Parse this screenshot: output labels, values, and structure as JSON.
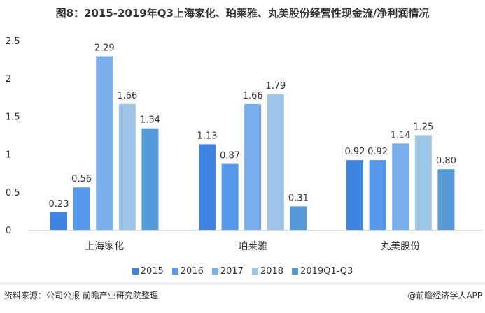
{
  "chart_data": {
    "type": "bar",
    "title": "图8：2015-2019年Q3上海家化、珀莱雅、丸美股份经营性现金流/净利润情况",
    "categories": [
      "上海家化",
      "珀莱雅",
      "丸美股份"
    ],
    "series": [
      {
        "name": "2015",
        "values": [
          0.23,
          1.13,
          0.92
        ],
        "color": "#3d85e0"
      },
      {
        "name": "2016",
        "values": [
          0.56,
          0.87,
          0.92
        ],
        "color": "#5599ea"
      },
      {
        "name": "2017",
        "values": [
          2.29,
          1.66,
          1.14
        ],
        "color": "#77aeeb"
      },
      {
        "name": "2018",
        "values": [
          1.66,
          1.79,
          1.25
        ],
        "color": "#9cc5e8"
      },
      {
        "name": "2019Q1-Q3",
        "values": [
          1.34,
          0.31,
          0.8
        ],
        "color": "#559ad6"
      }
    ],
    "labels": [
      [
        "0.23",
        "1.13",
        "0.92"
      ],
      [
        "0.56",
        "0.87",
        "0.92"
      ],
      [
        "2.29",
        "1.66",
        "1.14"
      ],
      [
        "1.66",
        "1.79",
        "1.25"
      ],
      [
        "1.34",
        "0.31",
        "0.80"
      ]
    ],
    "yticks": [
      "0",
      "0.5",
      "1",
      "1.5",
      "2",
      "2.5"
    ],
    "ylim": [
      0,
      2.5
    ],
    "grid": false,
    "legend_position": "bottom"
  },
  "footer": {
    "source": "资料来源：公司公报 前瞻产业研究院整理",
    "brand": "@前瞻经济学人APP"
  }
}
